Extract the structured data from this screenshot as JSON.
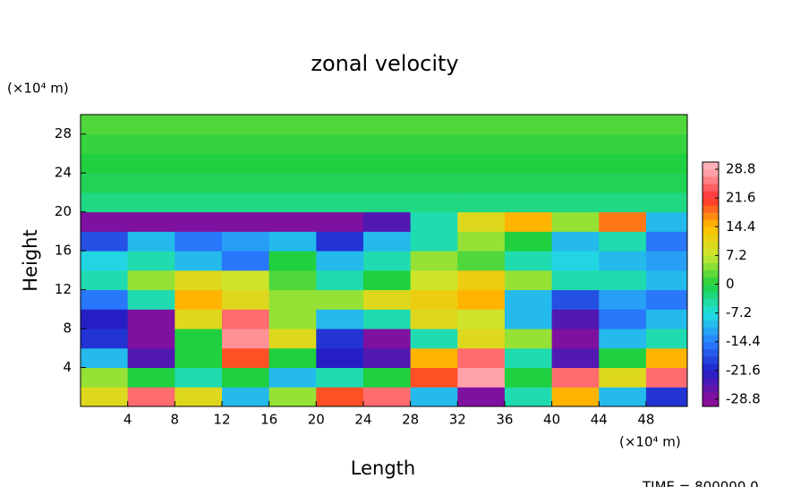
{
  "chart_data": {
    "type": "heatmap",
    "title": "zonal velocity",
    "x_label": "Length",
    "y_label": "Height",
    "x_unit": "(×10⁴ m)",
    "y_unit": "(×10⁴ m)",
    "footer": "TIME = 800000.0",
    "xlim": [
      0,
      51.5
    ],
    "ylim": [
      0,
      30
    ],
    "xticks": [
      4,
      8,
      12,
      16,
      20,
      24,
      28,
      32,
      36,
      40,
      44,
      48
    ],
    "yticks": [
      4,
      8,
      12,
      16,
      20,
      24,
      28
    ],
    "x_edges": [
      0,
      4,
      8,
      12,
      16,
      20,
      24,
      28,
      32,
      36,
      40,
      44,
      48,
      51.5
    ],
    "y_edges": [
      0,
      2,
      4,
      6,
      8,
      10,
      12,
      14,
      16,
      18,
      20,
      22,
      24,
      26,
      28,
      30
    ],
    "z": [
      [
        10,
        25,
        10,
        -10,
        5,
        20,
        25,
        -10,
        -28,
        -5,
        15,
        -10,
        -20
      ],
      [
        5,
        0,
        -5,
        0,
        -10,
        -5,
        0,
        20,
        28,
        0,
        25,
        10,
        25
      ],
      [
        -10,
        -25,
        0,
        20,
        0,
        -22,
        -25,
        15,
        25,
        -5,
        -25,
        0,
        15
      ],
      [
        -20,
        -28,
        0,
        27,
        10,
        -20,
        -28,
        -5,
        10,
        5,
        -28,
        -10,
        -5
      ],
      [
        -22,
        -28,
        10,
        25,
        5,
        -10,
        -5,
        10,
        8,
        -10,
        -25,
        -15,
        -10
      ],
      [
        -15,
        -5,
        15,
        10,
        5,
        5,
        10,
        12,
        15,
        -10,
        -18,
        -12,
        -15
      ],
      [
        -5,
        5,
        10,
        8,
        2,
        -5,
        0,
        8,
        12,
        5,
        -5,
        -5,
        -10
      ],
      [
        -8,
        -5,
        -10,
        -15,
        0,
        -10,
        -5,
        5,
        2,
        -5,
        -8,
        -10,
        -12
      ],
      [
        -18,
        -10,
        -15,
        -12,
        -10,
        -20,
        -10,
        -5,
        5,
        0,
        -10,
        -5,
        -15
      ],
      [
        -28,
        -28,
        -28,
        -28,
        -28,
        -28,
        -25,
        -5,
        10,
        15,
        5,
        18,
        -10
      ],
      [
        -3,
        -3,
        -3,
        -3,
        -3,
        -3,
        -3,
        -3,
        -3,
        -3,
        -3,
        -3,
        -3
      ],
      [
        -1,
        -1,
        -1,
        -1,
        -1,
        -1,
        -1,
        -1,
        -1,
        -1,
        -1,
        -1,
        -1
      ],
      [
        0,
        0,
        0,
        0,
        0,
        0,
        0,
        0,
        0,
        0,
        0,
        0,
        0
      ],
      [
        1,
        1,
        1,
        1,
        1,
        1,
        1,
        1,
        1,
        1,
        1,
        1,
        1
      ],
      [
        2,
        2,
        2,
        2,
        2,
        2,
        2,
        2,
        2,
        2,
        2,
        2,
        2
      ]
    ],
    "clim": [
      -30.6,
      30.6
    ],
    "cticks": [
      28.8,
      21.6,
      14.4,
      7.2,
      0,
      -7.2,
      -14.4,
      -21.6,
      -28.8
    ],
    "colorscale": [
      [
        -28.8,
        "#8a0f9a"
      ],
      [
        -21.6,
        "#2020c8"
      ],
      [
        -14.4,
        "#2a7fff"
      ],
      [
        -7.2,
        "#20e0e0"
      ],
      [
        0,
        "#20d040"
      ],
      [
        7.2,
        "#c8e830"
      ],
      [
        14.4,
        "#ffc000"
      ],
      [
        21.6,
        "#ff3030"
      ],
      [
        28.8,
        "#ffb0b8"
      ]
    ]
  }
}
